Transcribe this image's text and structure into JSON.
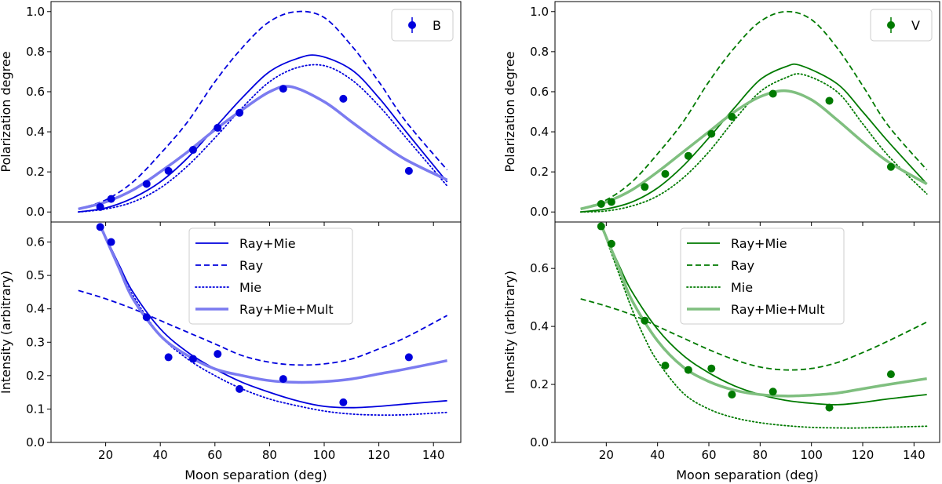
{
  "chart_data": [
    {
      "id": "pol-B",
      "type": "line",
      "band": "B",
      "color": "#0000dd",
      "light_color": "#7b7bf0",
      "ylabel": "Polarization degree",
      "xlim": [
        0,
        150
      ],
      "ylim": [
        -0.05,
        1.05
      ],
      "xticks": [
        20,
        40,
        60,
        80,
        100,
        120,
        140
      ],
      "yticks": [
        "0.0",
        "0.2",
        "0.4",
        "0.6",
        "0.8",
        "1.0"
      ],
      "legend": [
        "B"
      ],
      "observed": {
        "x": [
          18,
          22,
          35,
          43,
          52,
          61,
          69,
          85,
          107,
          131
        ],
        "y": [
          0.025,
          0.065,
          0.14,
          0.205,
          0.31,
          0.42,
          0.495,
          0.615,
          0.565,
          0.205
        ]
      },
      "series": [
        {
          "name": "Ray+Mie",
          "style": "solid",
          "x": [
            10,
            20,
            30,
            40,
            50,
            60,
            70,
            80,
            90,
            98,
            110,
            120,
            130,
            145
          ],
          "y": [
            0.0,
            0.02,
            0.07,
            0.15,
            0.27,
            0.42,
            0.57,
            0.7,
            0.765,
            0.78,
            0.71,
            0.57,
            0.4,
            0.15
          ]
        },
        {
          "name": "Ray",
          "style": "dashed",
          "x": [
            10,
            20,
            30,
            40,
            50,
            60,
            70,
            80,
            90,
            100,
            110,
            120,
            130,
            145
          ],
          "y": [
            0.015,
            0.06,
            0.15,
            0.29,
            0.45,
            0.65,
            0.82,
            0.95,
            1.0,
            0.97,
            0.83,
            0.65,
            0.45,
            0.21
          ]
        },
        {
          "name": "Mie",
          "style": "dotted",
          "x": [
            10,
            20,
            30,
            40,
            50,
            60,
            70,
            80,
            90,
            100,
            110,
            120,
            130,
            145
          ],
          "y": [
            0.0,
            0.015,
            0.05,
            0.12,
            0.23,
            0.37,
            0.52,
            0.65,
            0.72,
            0.73,
            0.66,
            0.53,
            0.37,
            0.13
          ]
        },
        {
          "name": "Ray+Mie+Mult",
          "style": "thick",
          "x": [
            10,
            20,
            30,
            40,
            50,
            60,
            70,
            80,
            88,
            100,
            110,
            120,
            130,
            145
          ],
          "y": [
            0.015,
            0.05,
            0.11,
            0.2,
            0.3,
            0.41,
            0.51,
            0.6,
            0.625,
            0.55,
            0.45,
            0.35,
            0.26,
            0.16
          ]
        }
      ]
    },
    {
      "id": "int-B",
      "type": "line",
      "band": "B",
      "color": "#0000dd",
      "light_color": "#7b7bf0",
      "ylabel": "Intensity (arbitrary)",
      "xlabel": "Moon separation (deg)",
      "xlim": [
        0,
        150
      ],
      "ylim": [
        0,
        0.66
      ],
      "xticks": [
        20,
        40,
        60,
        80,
        100,
        120,
        140
      ],
      "yticks": [
        "0.0",
        "0.1",
        "0.2",
        "0.3",
        "0.4",
        "0.5",
        "0.6"
      ],
      "legend": [
        "Ray+Mie",
        "Ray",
        "Mie",
        "Ray+Mie+Mult"
      ],
      "observed": {
        "x": [
          18,
          22,
          35,
          43,
          52,
          61,
          69,
          85,
          107,
          131
        ],
        "y": [
          0.645,
          0.6,
          0.375,
          0.255,
          0.25,
          0.265,
          0.16,
          0.19,
          0.12,
          0.255
        ]
      },
      "series": [
        {
          "name": "Ray+Mie",
          "style": "solid",
          "x": [
            18,
            25,
            30,
            40,
            50,
            60,
            70,
            80,
            90,
            100,
            110,
            120,
            130,
            145
          ],
          "y": [
            0.65,
            0.53,
            0.45,
            0.34,
            0.27,
            0.22,
            0.18,
            0.15,
            0.125,
            0.108,
            0.104,
            0.108,
            0.115,
            0.125
          ]
        },
        {
          "name": "Ray",
          "style": "dashed",
          "x": [
            10,
            20,
            30,
            40,
            50,
            60,
            70,
            80,
            90,
            100,
            110,
            120,
            130,
            145
          ],
          "y": [
            0.455,
            0.43,
            0.4,
            0.365,
            0.33,
            0.295,
            0.26,
            0.24,
            0.232,
            0.235,
            0.25,
            0.28,
            0.315,
            0.38
          ]
        },
        {
          "name": "Mie",
          "style": "dotted",
          "x": [
            18,
            25,
            30,
            40,
            50,
            60,
            70,
            80,
            90,
            100,
            110,
            120,
            130,
            145
          ],
          "y": [
            0.65,
            0.52,
            0.44,
            0.32,
            0.25,
            0.2,
            0.16,
            0.13,
            0.11,
            0.094,
            0.085,
            0.082,
            0.083,
            0.09
          ]
        },
        {
          "name": "Ray+Mie+Mult",
          "style": "thick",
          "x": [
            18,
            25,
            30,
            40,
            50,
            60,
            70,
            80,
            90,
            100,
            110,
            120,
            130,
            145
          ],
          "y": [
            0.65,
            0.52,
            0.43,
            0.32,
            0.26,
            0.22,
            0.2,
            0.185,
            0.18,
            0.182,
            0.19,
            0.205,
            0.22,
            0.245
          ]
        }
      ]
    },
    {
      "id": "pol-V",
      "type": "line",
      "band": "V",
      "color": "#007a00",
      "light_color": "#7fbf7f",
      "ylabel": "Polarization degree",
      "xlim": [
        0,
        150
      ],
      "ylim": [
        -0.05,
        1.05
      ],
      "xticks": [
        20,
        40,
        60,
        80,
        100,
        120,
        140
      ],
      "yticks": [
        "0.0",
        "0.2",
        "0.4",
        "0.6",
        "0.8",
        "1.0"
      ],
      "legend": [
        "V"
      ],
      "observed": {
        "x": [
          18,
          22,
          35,
          43,
          52,
          61,
          69,
          85,
          107,
          131
        ],
        "y": [
          0.04,
          0.05,
          0.125,
          0.19,
          0.28,
          0.39,
          0.475,
          0.59,
          0.555,
          0.225
        ]
      },
      "series": [
        {
          "name": "Ray+Mie",
          "style": "solid",
          "x": [
            10,
            20,
            30,
            40,
            50,
            60,
            70,
            80,
            90,
            96,
            110,
            120,
            130,
            145
          ],
          "y": [
            0.0,
            0.015,
            0.05,
            0.12,
            0.23,
            0.37,
            0.52,
            0.66,
            0.725,
            0.73,
            0.64,
            0.5,
            0.35,
            0.14
          ]
        },
        {
          "name": "Ray",
          "style": "dashed",
          "x": [
            10,
            20,
            30,
            40,
            50,
            60,
            70,
            80,
            90,
            100,
            110,
            120,
            130,
            145
          ],
          "y": [
            0.015,
            0.06,
            0.15,
            0.29,
            0.45,
            0.65,
            0.82,
            0.95,
            1.0,
            0.96,
            0.82,
            0.63,
            0.43,
            0.21
          ]
        },
        {
          "name": "Mie",
          "style": "dotted",
          "x": [
            10,
            20,
            30,
            40,
            50,
            60,
            70,
            80,
            90,
            97,
            110,
            120,
            130,
            145
          ],
          "y": [
            0.0,
            0.005,
            0.03,
            0.08,
            0.17,
            0.3,
            0.46,
            0.6,
            0.67,
            0.685,
            0.6,
            0.44,
            0.28,
            0.09
          ]
        },
        {
          "name": "Ray+Mie+Mult",
          "style": "thick",
          "x": [
            10,
            20,
            30,
            40,
            50,
            60,
            70,
            80,
            90,
            100,
            110,
            120,
            130,
            145
          ],
          "y": [
            0.015,
            0.05,
            0.11,
            0.2,
            0.3,
            0.4,
            0.5,
            0.575,
            0.605,
            0.56,
            0.46,
            0.35,
            0.25,
            0.14
          ]
        }
      ]
    },
    {
      "id": "int-V",
      "type": "line",
      "band": "V",
      "color": "#007a00",
      "light_color": "#7fbf7f",
      "ylabel": "Intensity (arbitrary)",
      "xlabel": "Moon separation (deg)",
      "xlim": [
        0,
        150
      ],
      "ylim": [
        0,
        0.76
      ],
      "xticks": [
        20,
        40,
        60,
        80,
        100,
        120,
        140
      ],
      "yticks": [
        "0.0",
        "0.2",
        "0.4",
        "0.6"
      ],
      "legend": [
        "Ray+Mie",
        "Ray",
        "Mie",
        "Ray+Mie+Mult"
      ],
      "observed": {
        "x": [
          18,
          22,
          35,
          43,
          52,
          61,
          69,
          85,
          107,
          131
        ],
        "y": [
          0.745,
          0.685,
          0.42,
          0.265,
          0.25,
          0.255,
          0.165,
          0.175,
          0.12,
          0.235
        ]
      },
      "series": [
        {
          "name": "Ray+Mie",
          "style": "solid",
          "x": [
            18,
            25,
            30,
            40,
            50,
            60,
            70,
            80,
            90,
            100,
            110,
            120,
            130,
            145
          ],
          "y": [
            0.75,
            0.61,
            0.52,
            0.39,
            0.3,
            0.24,
            0.195,
            0.165,
            0.145,
            0.135,
            0.13,
            0.138,
            0.15,
            0.165
          ]
        },
        {
          "name": "Ray",
          "style": "dashed",
          "x": [
            10,
            20,
            30,
            40,
            50,
            60,
            70,
            80,
            90,
            100,
            110,
            120,
            130,
            145
          ],
          "y": [
            0.495,
            0.47,
            0.44,
            0.4,
            0.36,
            0.32,
            0.285,
            0.26,
            0.25,
            0.255,
            0.275,
            0.31,
            0.35,
            0.415
          ]
        },
        {
          "name": "Mie",
          "style": "dotted",
          "x": [
            18,
            25,
            30,
            35,
            40,
            50,
            60,
            70,
            80,
            90,
            100,
            110,
            120,
            145
          ],
          "y": [
            0.75,
            0.58,
            0.46,
            0.36,
            0.28,
            0.17,
            0.115,
            0.085,
            0.068,
            0.058,
            0.052,
            0.05,
            0.05,
            0.056
          ]
        },
        {
          "name": "Ray+Mie+Mult",
          "style": "thick",
          "x": [
            18,
            25,
            30,
            40,
            50,
            60,
            70,
            80,
            90,
            100,
            110,
            120,
            130,
            145
          ],
          "y": [
            0.75,
            0.6,
            0.49,
            0.35,
            0.26,
            0.21,
            0.18,
            0.165,
            0.16,
            0.163,
            0.17,
            0.185,
            0.2,
            0.22
          ]
        }
      ]
    }
  ]
}
